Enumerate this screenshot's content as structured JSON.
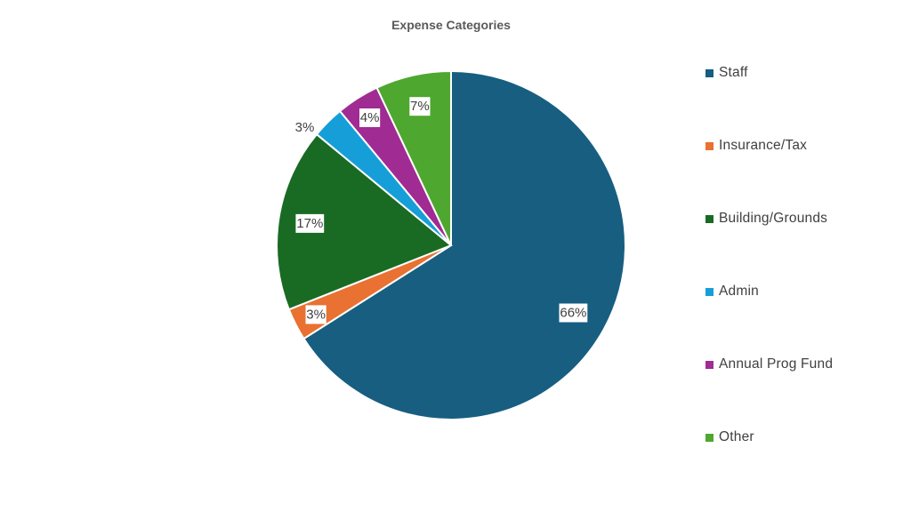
{
  "chart_data": {
    "type": "pie",
    "title": "Expense Categories",
    "legend_position": "right",
    "slices": [
      {
        "label": "Staff",
        "value": 66,
        "display": "66%",
        "color": "#175e81"
      },
      {
        "label": "Insurance/Tax",
        "value": 3,
        "display": "3%",
        "color": "#e97132"
      },
      {
        "label": "Building/Grounds",
        "value": 17,
        "display": "17%",
        "color": "#196b24"
      },
      {
        "label": "Admin",
        "value": 3,
        "display": "3%",
        "color": "#169ed8"
      },
      {
        "label": "Annual Prog Fund",
        "value": 4,
        "display": "4%",
        "color": "#a02b93"
      },
      {
        "label": "Other",
        "value": 7,
        "display": "7%",
        "color": "#4ea72e"
      }
    ]
  }
}
